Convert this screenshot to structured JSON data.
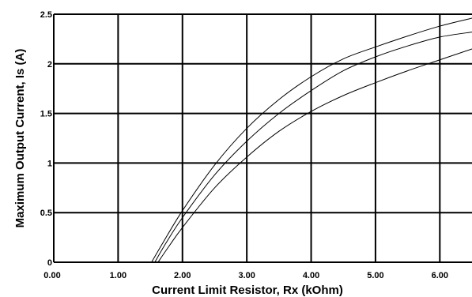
{
  "chart_data": {
    "type": "line",
    "xlabel": "Current Limit Resistor, Rx (kOhm)",
    "ylabel": "Maximum Output Current, Is (A)",
    "xlim": [
      0,
      6.5
    ],
    "ylim": [
      0,
      2.5
    ],
    "grid": true,
    "x_ticks": [
      "0.00",
      "1.00",
      "2.00",
      "3.00",
      "4.00",
      "5.00",
      "6.00"
    ],
    "y_ticks": [
      "0",
      "0.5",
      "1",
      "1.5",
      "2",
      "2.5"
    ],
    "series": [
      {
        "x": [
          1.52,
          1.7,
          2.0,
          2.5,
          3.0,
          3.5,
          4.0,
          4.5,
          5.0,
          5.5,
          6.0,
          6.5
        ],
        "values": [
          0.0,
          0.2,
          0.52,
          0.98,
          1.35,
          1.64,
          1.87,
          2.05,
          2.17,
          2.28,
          2.38,
          2.46
        ]
      },
      {
        "x": [
          1.57,
          1.75,
          2.0,
          2.5,
          3.0,
          3.5,
          4.0,
          4.5,
          5.0,
          5.5,
          6.0,
          6.5
        ],
        "values": [
          0.0,
          0.2,
          0.45,
          0.88,
          1.22,
          1.5,
          1.73,
          1.93,
          2.07,
          2.18,
          2.27,
          2.32
        ]
      },
      {
        "x": [
          1.62,
          1.8,
          2.0,
          2.5,
          3.0,
          3.5,
          4.0,
          4.5,
          5.0,
          5.5,
          6.0,
          6.5
        ],
        "values": [
          0.0,
          0.17,
          0.35,
          0.75,
          1.06,
          1.32,
          1.52,
          1.68,
          1.81,
          1.93,
          2.04,
          2.15
        ]
      }
    ]
  }
}
